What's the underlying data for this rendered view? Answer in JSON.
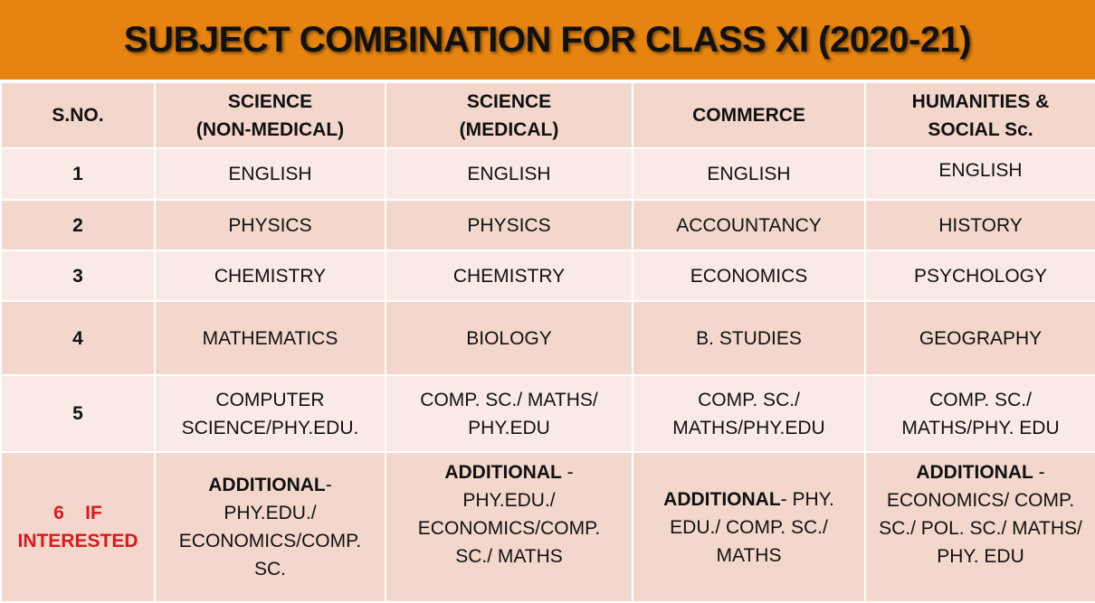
{
  "title": "SUBJECT COMBINATION FOR CLASS XI (2020-21)",
  "colors": {
    "banner": "#E6840F",
    "row_dark": "#F3D7CC",
    "row_light": "#F9EAE5",
    "highlight": "#D9191C"
  },
  "headers": {
    "sno": "S.NO.",
    "c1a": "SCIENCE",
    "c1b": "(NON-MEDICAL)",
    "c2a": "SCIENCE",
    "c2b": "(MEDICAL)",
    "c3": "COMMERCE",
    "c4a": "HUMANITIES &",
    "c4b": "SOCIAL Sc."
  },
  "rows": [
    {
      "sno": "1",
      "c1": "ENGLISH",
      "c2": "ENGLISH",
      "c3": "ENGLISH",
      "c4": "ENGLISH"
    },
    {
      "sno": "2",
      "c1": "PHYSICS",
      "c2": "PHYSICS",
      "c3": "ACCOUNTANCY",
      "c4": "HISTORY"
    },
    {
      "sno": "3",
      "c1": "CHEMISTRY",
      "c2": "CHEMISTRY",
      "c3": "ECONOMICS",
      "c4": "PSYCHOLOGY"
    },
    {
      "sno": "4",
      "c1": "MATHEMATICS",
      "c2": "BIOLOGY",
      "c3": "B. STUDIES",
      "c4": "GEOGRAPHY"
    },
    {
      "sno": "5",
      "c1": "COMPUTER SCIENCE/PHY.EDU.",
      "c2": "COMP. SC./ MATHS/ PHY.EDU",
      "c3": "COMP. SC./ MATHS/PHY.EDU",
      "c4": "COMP. SC./ MATHS/PHY. EDU"
    }
  ],
  "row6": {
    "sno": "6    IF INTERESTED",
    "c1_bold": "ADDITIONAL",
    "c1_rest": "- PHY.EDU./ ECONOMICS/COMP. SC.",
    "c2_bold": "ADDITIONAL",
    "c2_rest": " - PHY.EDU./ ECONOMICS/COMP. SC./ MATHS",
    "c3_bold": "ADDITIONAL",
    "c3_rest": "- PHY. EDU./ COMP. SC./ MATHS",
    "c4_bold": "ADDITIONAL",
    "c4_rest": " - ECONOMICS/ COMP. SC./ POL. SC./ MATHS/ PHY. EDU"
  }
}
